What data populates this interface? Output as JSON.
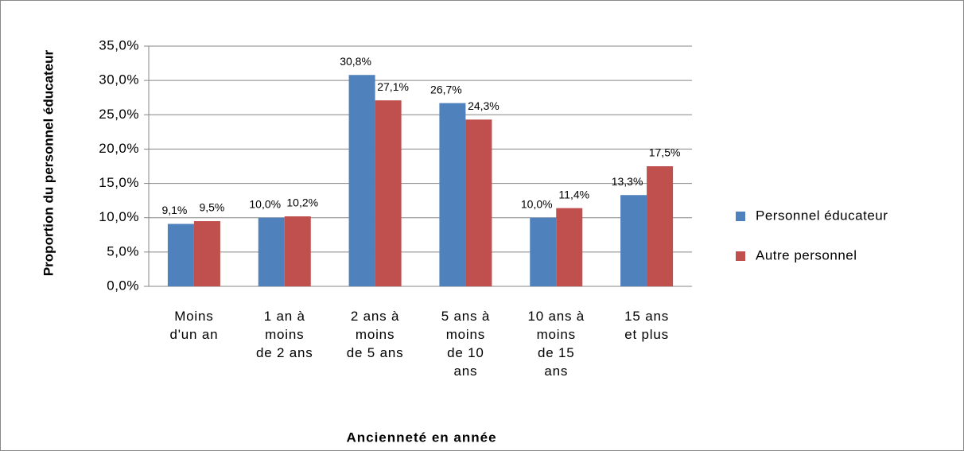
{
  "chart_data": {
    "type": "bar",
    "x_label": "Ancienneté en année",
    "y_label": "Proportion du personnel éducateur",
    "categories": [
      "Moins\nd'un an",
      "1 an à\nmoins\nde 2 ans",
      "2 ans à\nmoins\nde 5 ans",
      "5 ans à\nmoins\nde 10\nans",
      "10 ans à\nmoins\nde 15\nans",
      "15 ans\net plus"
    ],
    "series": [
      {
        "name": "Personnel éducateur",
        "color": "#4f81bd",
        "values": [
          9.1,
          10.0,
          30.8,
          26.7,
          10.0,
          13.3
        ],
        "value_labels": [
          "9,1%",
          "10,0%",
          "30,8%",
          "26,7%",
          "10,0%",
          "13,3%"
        ]
      },
      {
        "name": "Autre personnel",
        "color": "#c0504d",
        "values": [
          9.5,
          10.2,
          27.1,
          24.3,
          11.4,
          17.5
        ],
        "value_labels": [
          "9,5%",
          "10,2%",
          "27,1%",
          "24,3%",
          "11,4%",
          "17,5%"
        ]
      }
    ],
    "ylim": [
      0,
      35
    ],
    "yticks": [
      {
        "value": 0,
        "label": "0,0%"
      },
      {
        "value": 5,
        "label": "5,0%"
      },
      {
        "value": 10,
        "label": "10,0%"
      },
      {
        "value": 15,
        "label": "15,0%"
      },
      {
        "value": 20,
        "label": "20,0%"
      },
      {
        "value": 25,
        "label": "25,0%"
      },
      {
        "value": 30,
        "label": "30,0%"
      },
      {
        "value": 35,
        "label": "35,0%"
      }
    ],
    "grid": true,
    "legend": "right"
  }
}
